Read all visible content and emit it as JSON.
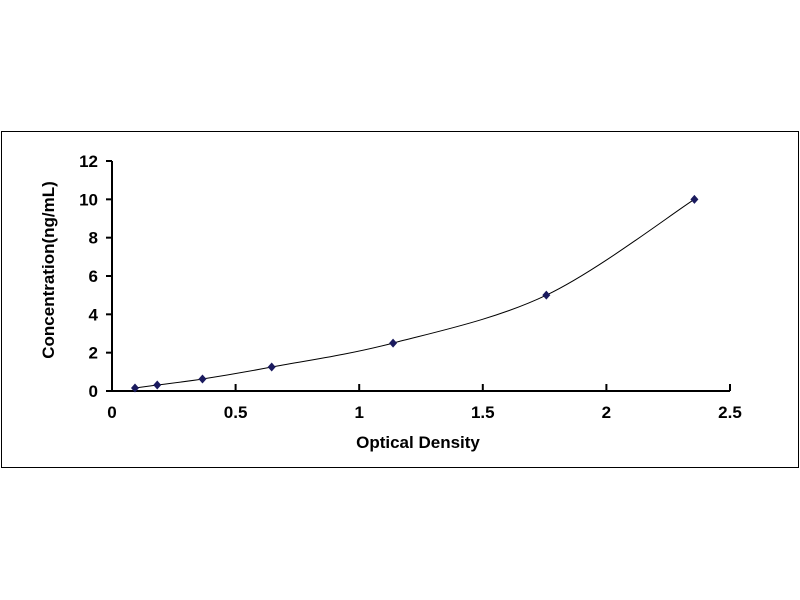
{
  "chart_data": {
    "type": "scatter",
    "title": "",
    "xlabel": "Optical Density",
    "ylabel": "Concentration(ng/mL)",
    "xlim": [
      0,
      2.5
    ],
    "ylim": [
      0,
      12
    ],
    "xticks": [
      "0",
      "0.5",
      "1",
      "1.5",
      "2",
      "2.5"
    ],
    "yticks": [
      "0",
      "2",
      "4",
      "6",
      "8",
      "10",
      "12"
    ],
    "grid": false,
    "trendline": "smooth curve",
    "x": [
      0.093,
      0.183,
      0.366,
      0.646,
      1.137,
      1.757,
      2.356
    ],
    "y": [
      0.156,
      0.312,
      0.625,
      1.25,
      2.5,
      5,
      10
    ],
    "marker_color": "#1a1a5e",
    "line_color": "#000000"
  }
}
